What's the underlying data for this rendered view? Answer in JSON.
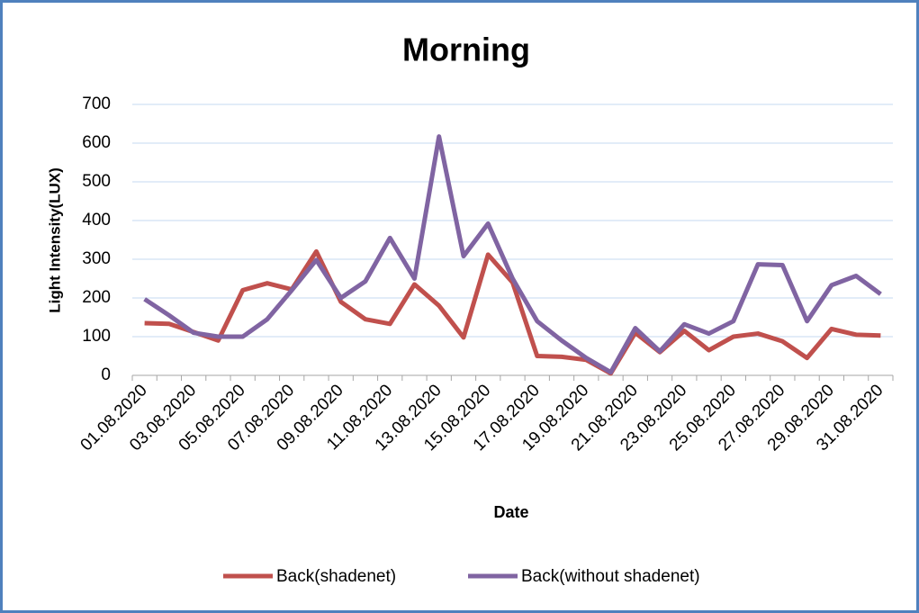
{
  "chart_data": {
    "type": "line",
    "title": "Morning",
    "x_label": "Date",
    "y_label": "Light Intensity(LUX)",
    "categories": [
      "01.08.2020",
      null,
      "03.08.2020",
      null,
      "05.08.2020",
      null,
      "07.08.2020",
      null,
      "09.08.2020",
      null,
      "11.08.2020",
      null,
      "13.08.2020",
      null,
      "15.08.2020",
      null,
      "17.08.2020",
      null,
      "19.08.2020",
      null,
      "21.08.2020",
      null,
      "23.08.2020",
      null,
      "25.08.2020",
      null,
      "27.08.2020",
      null,
      "29.08.2020",
      null,
      "31.08.2020"
    ],
    "series": [
      {
        "name": "Back(shadenet)",
        "color": "#c0504d",
        "values": [
          135,
          133,
          112,
          90,
          220,
          238,
          222,
          320,
          190,
          145,
          133,
          235,
          180,
          98,
          312,
          240,
          50,
          48,
          40,
          5,
          110,
          60,
          115,
          65,
          100,
          108,
          88,
          45,
          120,
          105,
          103
        ]
      },
      {
        "name": "Back(without shadenet)",
        "color": "#8064a2",
        "values": [
          197,
          155,
          110,
          100,
          100,
          145,
          220,
          298,
          200,
          243,
          355,
          250,
          617,
          308,
          392,
          250,
          140,
          90,
          45,
          8,
          122,
          62,
          132,
          108,
          140,
          287,
          285,
          140,
          233,
          257,
          210
        ]
      }
    ],
    "ylim": [
      0,
      700
    ],
    "yticks": [
      0,
      100,
      200,
      300,
      400,
      500,
      600,
      700
    ],
    "grid": true,
    "legend": "bottom"
  }
}
